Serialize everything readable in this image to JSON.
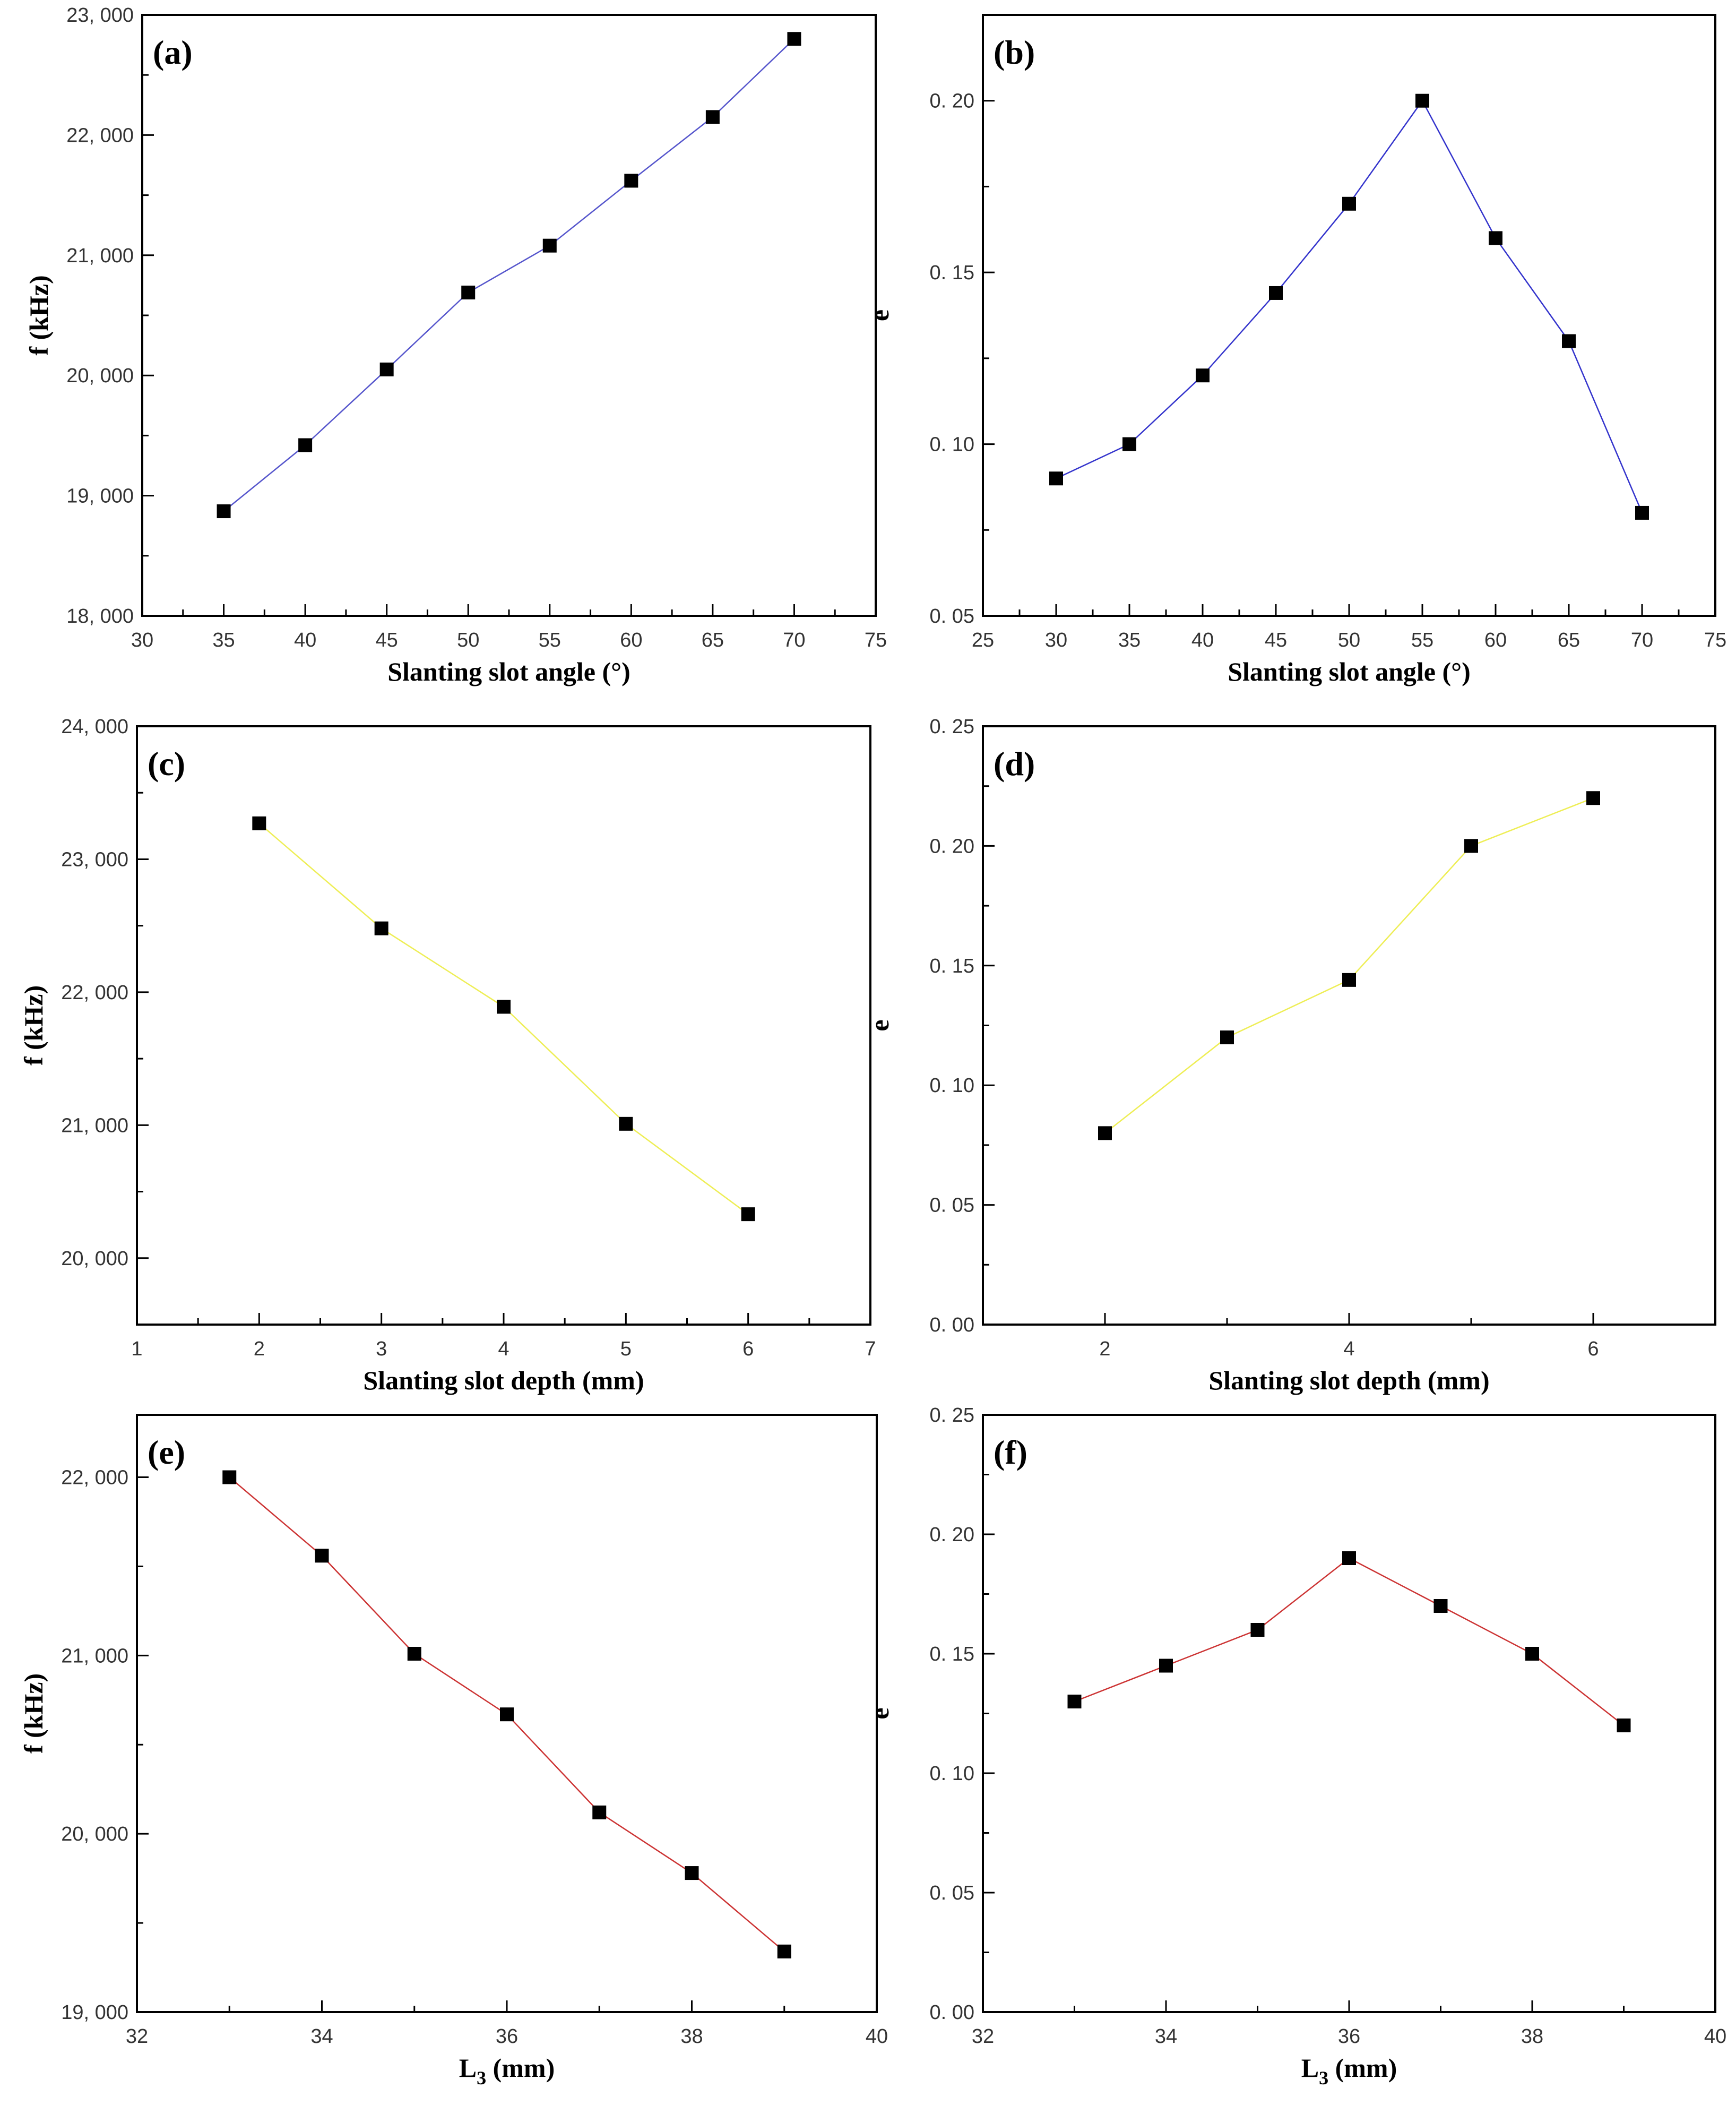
{
  "chart_data": [
    {
      "panel": "(a)",
      "type": "line",
      "title": "",
      "xlabel": "Slanting slot angle (°)",
      "ylabel": "f (kHz)",
      "xlim": [
        30,
        75
      ],
      "ylim": [
        18000,
        23000
      ],
      "xticks": [
        30,
        35,
        40,
        45,
        50,
        55,
        60,
        65,
        70,
        75
      ],
      "yticks": [
        18000,
        19000,
        20000,
        21000,
        22000,
        23000
      ],
      "ytick_labels": [
        "18, 000",
        "19, 000",
        "20, 000",
        "21, 000",
        "22, 000",
        "23, 000"
      ],
      "line_color": "#5555cc",
      "x": [
        35,
        40,
        45,
        50,
        55,
        60,
        65,
        70
      ],
      "y": [
        18870,
        19420,
        20050,
        20690,
        21080,
        21620,
        22150,
        22800
      ],
      "grid": false
    },
    {
      "panel": "(b)",
      "type": "line",
      "title": "",
      "xlabel": "Slanting slot angle (°)",
      "ylabel": "e",
      "xlim": [
        25,
        75
      ],
      "ylim": [
        0.05,
        0.225
      ],
      "xticks": [
        25,
        30,
        35,
        40,
        45,
        50,
        55,
        60,
        65,
        70,
        75
      ],
      "yticks": [
        0.05,
        0.1,
        0.15,
        0.2
      ],
      "ytick_labels": [
        "0. 05",
        "0. 10",
        "0. 15",
        "0. 20"
      ],
      "line_color": "#3333cc",
      "x": [
        30,
        35,
        40,
        45,
        50,
        55,
        60,
        65,
        70
      ],
      "y": [
        0.09,
        0.1,
        0.12,
        0.144,
        0.17,
        0.2,
        0.16,
        0.13,
        0.08
      ],
      "grid": false
    },
    {
      "panel": "(c)",
      "type": "line",
      "title": "",
      "xlabel": "Slanting slot depth (mm)",
      "ylabel": "f (kHz)",
      "xlim": [
        1,
        7
      ],
      "ylim": [
        19500,
        24000
      ],
      "xticks": [
        1,
        2,
        3,
        4,
        5,
        6,
        7
      ],
      "yticks": [
        20000,
        21000,
        22000,
        23000,
        24000
      ],
      "ytick_labels": [
        "20, 000",
        "21, 000",
        "22, 000",
        "23, 000",
        "24, 000"
      ],
      "line_color": "#eeee55",
      "x": [
        2,
        3,
        4,
        5,
        6
      ],
      "y": [
        23270,
        22480,
        21890,
        21010,
        20330
      ],
      "grid": false
    },
    {
      "panel": "(d)",
      "type": "line",
      "title": "",
      "xlabel": "Slanting slot depth (mm)",
      "ylabel": "e",
      "xlim": [
        1,
        7
      ],
      "ylim": [
        0.0,
        0.25
      ],
      "xticks": [
        2,
        4,
        6
      ],
      "yticks": [
        0.0,
        0.05,
        0.1,
        0.15,
        0.2,
        0.25
      ],
      "ytick_labels": [
        "0. 00",
        "0. 05",
        "0. 10",
        "0. 15",
        "0. 20",
        "0. 25"
      ],
      "line_color": "#eeee55",
      "x": [
        2,
        3,
        4,
        5,
        6
      ],
      "y": [
        0.08,
        0.12,
        0.144,
        0.2,
        0.22
      ],
      "grid": false
    },
    {
      "panel": "(e)",
      "type": "line",
      "title": "",
      "xlabel": "L",
      "xlabel_sub": "3",
      "xlabel_unit": " (mm)",
      "ylabel": "f (kHz)",
      "xlim": [
        32,
        40
      ],
      "ylim": [
        19000,
        22350
      ],
      "xticks": [
        32,
        34,
        36,
        38,
        40
      ],
      "yticks": [
        19000,
        20000,
        21000,
        22000
      ],
      "ytick_labels": [
        "19, 000",
        "20, 000",
        "21, 000",
        "22, 000"
      ],
      "line_color": "#cc3333",
      "x": [
        33,
        34,
        35,
        36,
        37,
        38,
        39
      ],
      "y": [
        22000,
        21560,
        21010,
        20670,
        20120,
        19780,
        19340
      ],
      "grid": false
    },
    {
      "panel": "(f)",
      "type": "line",
      "title": "",
      "xlabel": "L",
      "xlabel_sub": "3",
      "xlabel_unit": " (mm)",
      "ylabel": "e",
      "xlim": [
        32,
        40
      ],
      "ylim": [
        0.0,
        0.25
      ],
      "xticks": [
        32,
        34,
        36,
        38,
        40
      ],
      "yticks": [
        0.0,
        0.05,
        0.1,
        0.15,
        0.2,
        0.25
      ],
      "ytick_labels": [
        "0. 00",
        "0. 05",
        "0. 10",
        "0. 15",
        "0. 20",
        "0. 25"
      ],
      "line_color": "#cc3333",
      "x": [
        33,
        34,
        35,
        36,
        37,
        38,
        39
      ],
      "y": [
        0.13,
        0.145,
        0.16,
        0.19,
        0.17,
        0.15,
        0.12
      ],
      "grid": false
    }
  ]
}
